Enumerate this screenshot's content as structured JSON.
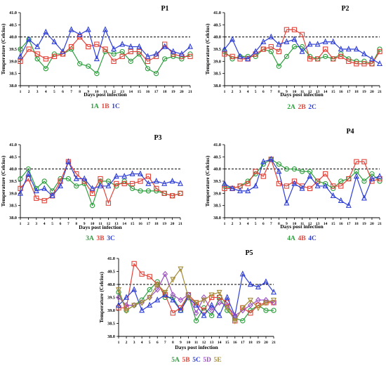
{
  "panel_layout": "two columns x two rows plus one centered bottom panel",
  "chart_data": [
    {
      "type": "line",
      "title": "P1",
      "xlabel": "Days post infection",
      "ylabel": "Temperature (Celcius)",
      "x": [
        1,
        2,
        3,
        4,
        5,
        6,
        7,
        8,
        9,
        10,
        11,
        12,
        13,
        14,
        15,
        16,
        17,
        18,
        19,
        20,
        21
      ],
      "xlim": [
        1,
        21
      ],
      "ylim": [
        38.0,
        41.0
      ],
      "yticks": [
        "38.0",
        "38.5",
        "39.0",
        "39.5",
        "40.0",
        "40.5",
        "41.0"
      ],
      "threshold": 40.0,
      "threshold_style": "dashed",
      "grid": false,
      "legend_position": "below x-axis label",
      "series": [
        {
          "name": "1A",
          "color": "#2e9e3e",
          "marker": "circle",
          "values": [
            39.5,
            39.9,
            39.1,
            38.7,
            39.3,
            39.3,
            39.5,
            38.9,
            38.8,
            38.5,
            39.4,
            39.3,
            39.4,
            39.0,
            39.3,
            38.7,
            38.5,
            39.1,
            39.2,
            39.1,
            39.3
          ]
        },
        {
          "name": "1B",
          "color": "#e0443a",
          "marker": "square",
          "values": [
            39.0,
            39.5,
            39.3,
            39.1,
            39.2,
            39.3,
            39.6,
            40.0,
            39.6,
            39.7,
            39.5,
            39.0,
            39.2,
            39.4,
            39.4,
            39.0,
            39.2,
            39.7,
            39.3,
            39.2,
            39.2
          ]
        },
        {
          "name": "1C",
          "color": "#2f3fd6",
          "marker": "triangle",
          "values": [
            39.2,
            39.9,
            39.6,
            40.2,
            39.8,
            39.4,
            40.3,
            40.1,
            40.3,
            39.1,
            40.3,
            39.5,
            39.7,
            39.6,
            39.6,
            39.2,
            39.3,
            39.6,
            39.4,
            39.3,
            39.6
          ]
        }
      ]
    },
    {
      "type": "line",
      "title": "P2",
      "xlabel": "Days post infection",
      "ylabel": "Temperature (Celcius)",
      "x": [
        1,
        2,
        3,
        4,
        5,
        6,
        7,
        8,
        9,
        10,
        11,
        12,
        13,
        14,
        15,
        16,
        17,
        18,
        19,
        20,
        21
      ],
      "xlim": [
        1,
        21
      ],
      "ylim": [
        38.0,
        41.0
      ],
      "yticks": [
        "38.0",
        "38.5",
        "39.0",
        "39.5",
        "40.0",
        "40.5",
        "41.0"
      ],
      "threshold": 40.0,
      "threshold_style": "dashed",
      "grid": false,
      "legend_position": "below x-axis label",
      "series": [
        {
          "name": "2A",
          "color": "#2e9e3e",
          "marker": "circle",
          "values": [
            39.4,
            39.1,
            39.2,
            39.2,
            39.2,
            39.5,
            39.4,
            38.8,
            39.2,
            39.6,
            39.6,
            39.2,
            39.1,
            39.2,
            39.1,
            39.3,
            39.1,
            39.0,
            39.0,
            38.9,
            39.5
          ]
        },
        {
          "name": "2B",
          "color": "#e0443a",
          "marker": "square",
          "values": [
            39.3,
            39.2,
            39.1,
            39.1,
            39.3,
            39.5,
            39.6,
            39.4,
            40.3,
            40.3,
            40.1,
            39.1,
            39.1,
            39.5,
            39.1,
            39.2,
            39.0,
            38.9,
            38.9,
            38.9,
            39.4
          ]
        },
        {
          "name": "2C",
          "color": "#2f3fd6",
          "marker": "triangle",
          "values": [
            39.5,
            39.9,
            39.2,
            39.1,
            39.4,
            39.8,
            40.0,
            39.7,
            39.8,
            39.9,
            39.4,
            39.7,
            39.7,
            39.8,
            39.8,
            39.5,
            39.5,
            39.5,
            39.3,
            39.1,
            38.9
          ]
        }
      ]
    },
    {
      "type": "line",
      "title": "P3",
      "xlabel": "Days post infection",
      "ylabel": "Temperature (Celcius)",
      "x": [
        1,
        2,
        3,
        4,
        5,
        6,
        7,
        8,
        9,
        10,
        11,
        12,
        13,
        14,
        15,
        16,
        17,
        18,
        19,
        20,
        21
      ],
      "xlim": [
        1,
        21
      ],
      "ylim": [
        38.0,
        41.0
      ],
      "yticks": [
        "38.0",
        "38.5",
        "39.0",
        "39.5",
        "40.0",
        "40.5",
        "41.0"
      ],
      "threshold": 40.0,
      "threshold_style": "dashed",
      "grid": false,
      "legend_position": "below x-axis label",
      "series": [
        {
          "name": "3A",
          "color": "#2e9e3e",
          "marker": "circle",
          "values": [
            39.6,
            40.0,
            39.2,
            39.5,
            39.1,
            39.6,
            39.6,
            39.3,
            39.4,
            38.5,
            39.5,
            39.5,
            39.3,
            39.5,
            39.2,
            39.1,
            39.1,
            39.1,
            39.0,
            38.9,
            39.0
          ]
        },
        {
          "name": "3B",
          "color": "#e0443a",
          "marker": "square",
          "values": [
            39.2,
            39.6,
            38.8,
            38.7,
            38.9,
            39.5,
            40.3,
            39.8,
            39.5,
            39.0,
            39.6,
            38.6,
            39.4,
            39.4,
            39.4,
            39.5,
            39.7,
            39.2,
            39.0,
            38.9,
            39.0
          ]
        },
        {
          "name": "3C",
          "color": "#2f3fd6",
          "marker": "triangle",
          "values": [
            39.0,
            39.8,
            39.1,
            39.2,
            38.9,
            39.3,
            40.3,
            39.6,
            39.6,
            39.2,
            39.3,
            39.3,
            39.7,
            39.7,
            39.8,
            39.8,
            39.4,
            39.5,
            39.4,
            39.5,
            39.4
          ]
        }
      ]
    },
    {
      "type": "line",
      "title": "P4",
      "xlabel": "Days post infection",
      "ylabel": "Temperature (Celcius)",
      "x": [
        1,
        2,
        3,
        4,
        5,
        6,
        7,
        8,
        9,
        10,
        11,
        12,
        13,
        14,
        15,
        16,
        17,
        18,
        19,
        20,
        21
      ],
      "xlim": [
        1,
        21
      ],
      "ylim": [
        38.0,
        41.0
      ],
      "yticks": [
        "38.0",
        "38.5",
        "39.0",
        "39.5",
        "40.0",
        "40.5",
        "41.0"
      ],
      "threshold": 40.0,
      "threshold_style": "dashed",
      "grid": false,
      "legend_position": "below x-axis label",
      "series": [
        {
          "name": "4A",
          "color": "#2e9e3e",
          "marker": "circle",
          "values": [
            39.3,
            39.2,
            39.3,
            39.5,
            39.8,
            40.2,
            40.4,
            40.2,
            40.0,
            40.0,
            39.9,
            39.9,
            39.5,
            39.4,
            39.2,
            39.5,
            39.6,
            39.9,
            39.5,
            39.8,
            39.5
          ]
        },
        {
          "name": "4B",
          "color": "#e0443a",
          "marker": "square",
          "values": [
            39.2,
            39.2,
            39.3,
            39.4,
            39.9,
            39.7,
            40.4,
            39.4,
            39.3,
            39.5,
            39.3,
            39.2,
            39.5,
            39.8,
            39.3,
            39.3,
            39.6,
            40.3,
            40.3,
            39.5,
            39.6
          ]
        },
        {
          "name": "4C",
          "color": "#2f3fd6",
          "marker": "triangle",
          "values": [
            39.4,
            39.2,
            39.1,
            39.1,
            39.3,
            40.3,
            40.4,
            39.9,
            38.6,
            39.4,
            39.2,
            39.7,
            39.3,
            39.3,
            38.9,
            38.7,
            38.5,
            39.7,
            38.8,
            39.6,
            39.7
          ]
        }
      ]
    },
    {
      "type": "line",
      "title": "P5",
      "xlabel": "Days post infection",
      "ylabel": "Temperature (Celcius)",
      "x": [
        1,
        2,
        3,
        4,
        5,
        6,
        7,
        8,
        9,
        10,
        11,
        12,
        13,
        14,
        15,
        16,
        17,
        18,
        19,
        20,
        21
      ],
      "xlim": [
        1,
        21
      ],
      "ylim": [
        38.0,
        41.0
      ],
      "yticks": [
        "38.0",
        "38.5",
        "39.0",
        "39.5",
        "40.0",
        "40.5",
        "41.0"
      ],
      "threshold": 40.0,
      "threshold_style": "dashed",
      "grid": false,
      "legend_position": "below x-axis label",
      "series": [
        {
          "name": "5A",
          "color": "#2e9e3e",
          "marker": "circle",
          "values": [
            39.7,
            39.0,
            39.2,
            39.4,
            39.8,
            40.1,
            39.5,
            39.5,
            39.0,
            39.6,
            38.6,
            39.1,
            38.8,
            39.5,
            39.0,
            38.7,
            38.6,
            39.0,
            39.2,
            39.0,
            39.0
          ]
        },
        {
          "name": "5B",
          "color": "#e0443a",
          "marker": "square",
          "values": [
            39.1,
            39.1,
            40.8,
            40.4,
            40.3,
            40.0,
            39.6,
            38.9,
            39.1,
            39.6,
            39.3,
            39.0,
            39.5,
            39.5,
            39.3,
            38.6,
            39.1,
            38.9,
            39.2,
            39.3,
            39.3
          ]
        },
        {
          "name": "5C",
          "color": "#2f3fd6",
          "marker": "triangle",
          "values": [
            39.2,
            39.5,
            39.8,
            39.0,
            39.2,
            39.4,
            39.6,
            39.4,
            39.0,
            39.5,
            39.2,
            38.8,
            39.2,
            38.8,
            39.5,
            38.8,
            40.4,
            40.0,
            39.9,
            40.1,
            39.7
          ]
        },
        {
          "name": "5D",
          "color": "#9b4fc2",
          "marker": "diamond",
          "values": [
            39.5,
            39.2,
            39.2,
            39.3,
            39.5,
            39.8,
            40.4,
            39.6,
            39.4,
            39.6,
            38.9,
            39.5,
            39.0,
            39.3,
            39.2,
            38.8,
            39.0,
            39.2,
            39.4,
            39.4,
            39.3
          ]
        },
        {
          "name": "5E",
          "color": "#a38b35",
          "marker": "triangle-down",
          "values": [
            39.8,
            39.0,
            39.2,
            39.3,
            39.5,
            40.0,
            39.7,
            40.2,
            40.6,
            39.5,
            39.3,
            39.4,
            39.6,
            39.7,
            39.1,
            38.6,
            39.1,
            39.4,
            39.1,
            39.3,
            39.4
          ]
        }
      ]
    }
  ]
}
